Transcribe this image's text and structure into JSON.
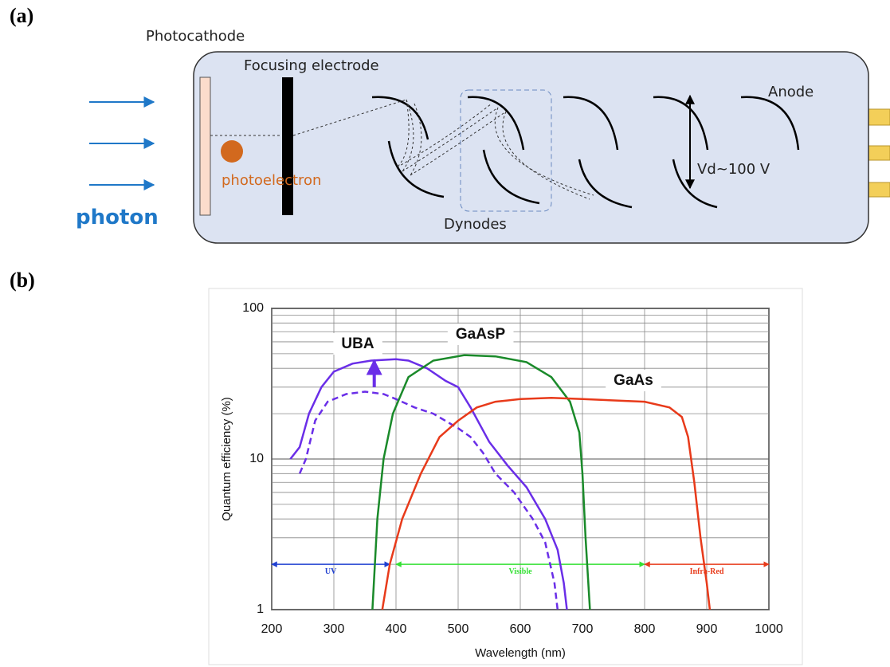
{
  "diagram": {
    "panel_label": "(a)",
    "photocathode": "Photocathode",
    "focusing_electrode": "Focusing electrode",
    "anode": "Anode",
    "photoelectron": "photoelectron",
    "photon": "photon",
    "dynodes": "Dynodes",
    "voltage": "Vd~100 V"
  },
  "chart_data": {
    "type": "line",
    "panel_label": "(b)",
    "xlabel": "Wavelength (nm)",
    "ylabel": "Quantum efficiency (%)",
    "xlim": [
      200,
      1000
    ],
    "xticks": [
      200,
      300,
      400,
      500,
      600,
      700,
      800,
      900,
      1000
    ],
    "ylim": [
      1,
      100
    ],
    "yticks": [
      1,
      10,
      100
    ],
    "log_y": true,
    "grid": true,
    "minor_grid": true,
    "series": [
      {
        "name": "UBA",
        "color": "#6a2ee8",
        "dashed": false,
        "x": [
          230,
          245,
          260,
          280,
          300,
          330,
          360,
          400,
          420,
          450,
          480,
          500,
          520,
          550,
          580,
          610,
          640,
          660,
          670,
          675
        ],
        "values": [
          10,
          12,
          20,
          30,
          38,
          43,
          45,
          46,
          45,
          40,
          33,
          30,
          22,
          13,
          9,
          6.5,
          4,
          2.5,
          1.5,
          1
        ]
      },
      {
        "color": "#6a2ee8",
        "dashed": true,
        "x": [
          245,
          255,
          270,
          290,
          320,
          350,
          380,
          400,
          430,
          460,
          500,
          520,
          540,
          560,
          590,
          620,
          640,
          655,
          660
        ],
        "values": [
          8,
          10,
          18,
          24,
          27,
          28,
          27,
          25,
          22,
          20,
          16,
          14,
          11,
          8,
          6,
          4,
          2.8,
          1.5,
          1
        ]
      },
      {
        "name": "GaAsP",
        "color": "#1a8a2a",
        "dashed": false,
        "x": [
          362,
          370,
          380,
          395,
          420,
          460,
          510,
          560,
          610,
          650,
          680,
          695,
          700,
          705,
          712
        ],
        "values": [
          1,
          4,
          10,
          20,
          35,
          45,
          49,
          48,
          44,
          35,
          24,
          15,
          8,
          3,
          1
        ]
      },
      {
        "name": "GaAs",
        "color": "#e83a1a",
        "dashed": false,
        "x": [
          378,
          390,
          410,
          440,
          470,
          500,
          530,
          560,
          600,
          650,
          700,
          800,
          840,
          860,
          870,
          880,
          890,
          900,
          905
        ],
        "values": [
          1,
          2,
          4,
          8,
          14,
          18,
          22,
          24,
          25,
          25.5,
          25,
          24,
          22,
          19,
          14,
          7,
          3,
          1.5,
          1
        ]
      }
    ],
    "arrow": {
      "x": 365,
      "from": 30,
      "to": 45,
      "color": "#6a2ee8"
    },
    "bands": [
      {
        "label": "UV",
        "from": 200,
        "to": 390,
        "y": 2,
        "color": "#1f3fd0"
      },
      {
        "label": "Visible",
        "from": 400,
        "to": 800,
        "y": 2,
        "color": "#33e033"
      },
      {
        "label": "Infra-Red",
        "from": 800,
        "to": 1000,
        "y": 2,
        "color": "#e83a1a"
      }
    ]
  }
}
